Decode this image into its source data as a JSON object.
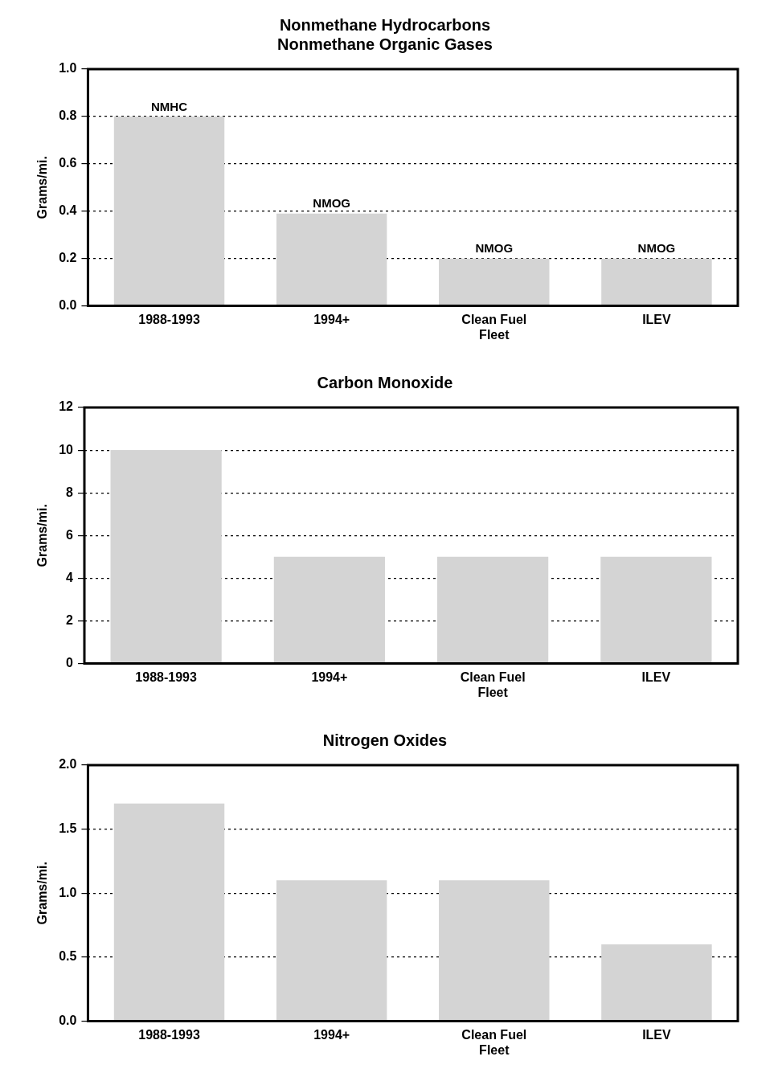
{
  "chart_data": [
    {
      "type": "bar",
      "title": "Nonmethane Hydrocarbons\nNonmethane Organic Gases",
      "ylabel": "Grams/mi.",
      "categories": [
        "1988-1993",
        "1994+",
        "Clean Fuel Fleet",
        "ILEV"
      ],
      "values": [
        0.8,
        0.39,
        0.2,
        0.2
      ],
      "color": "#d4d4d4",
      "ylim": [
        0,
        1.0
      ],
      "yticks": [
        {
          "value": 0,
          "label": "0.0"
        },
        {
          "value": 0.2,
          "label": "0.2"
        },
        {
          "value": 0.4,
          "label": "0.4"
        },
        {
          "value": 0.6,
          "label": "0.6"
        },
        {
          "value": 0.8,
          "label": "0.8"
        },
        {
          "value": 1.0,
          "label": "1.0"
        }
      ],
      "grid": "y",
      "legend": false,
      "annotations": [
        {
          "text": "NMHC",
          "x": "1988-1993",
          "y": 0.8
        },
        {
          "text": "NMOG",
          "x": "1994+",
          "y": 0.39
        },
        {
          "text": "NMOG",
          "x": "Clean Fuel Fleet",
          "y": 0.2
        },
        {
          "text": "NMOG",
          "x": "ILEV",
          "y": 0.2
        }
      ]
    },
    {
      "type": "bar",
      "title": "Carbon Monoxide",
      "ylabel": "Grams/mi.",
      "categories": [
        "1988-1993",
        "1994+",
        "Clean Fuel Fleet",
        "ILEV"
      ],
      "values": [
        10,
        5,
        5,
        5
      ],
      "color": "#d4d4d4",
      "ylim": [
        0,
        12
      ],
      "yticks": [
        0,
        2,
        4,
        6,
        8,
        10,
        12
      ],
      "grid": "y",
      "legend": false
    },
    {
      "type": "bar",
      "title": "Nitrogen Oxides",
      "ylabel": "Grams/mi.",
      "categories": [
        "1988-1993",
        "1994+",
        "Clean Fuel Fleet",
        "ILEV"
      ],
      "values": [
        1.7,
        1.1,
        1.1,
        0.6
      ],
      "color": "#d4d4d4",
      "ylim": [
        0,
        2.0
      ],
      "yticks": [
        {
          "value": 0,
          "label": "0.0"
        },
        {
          "value": 0.5,
          "label": "0.5"
        },
        {
          "value": 1.0,
          "label": "1.0"
        },
        {
          "value": 1.5,
          "label": "1.5"
        },
        {
          "value": 2.0,
          "label": "2.0"
        }
      ],
      "grid": "y",
      "legend": false
    }
  ]
}
